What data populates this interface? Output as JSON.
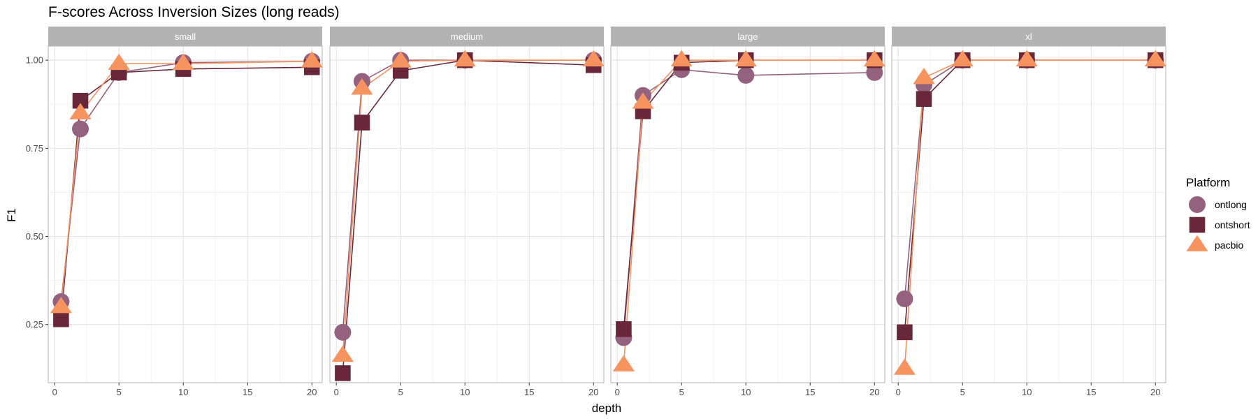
{
  "chart_data": {
    "type": "line",
    "title": "F-scores Across Inversion Sizes (long reads)",
    "xlabel": "depth",
    "ylabel": "F1",
    "xlim": [
      -0.5,
      20.8
    ],
    "ylim": [
      0.085,
      1.04
    ],
    "x_ticks": [
      0,
      5,
      10,
      15,
      20
    ],
    "x_tick_labels": [
      "0",
      "5",
      "10",
      "15",
      "20"
    ],
    "y_ticks": [
      0.25,
      0.5,
      0.75,
      1.0
    ],
    "y_tick_labels": [
      "0.25",
      "0.50",
      "0.75",
      "1.00"
    ],
    "grid": true,
    "legend": {
      "title": "Platform",
      "position": "right"
    },
    "x": [
      0.5,
      2,
      5,
      10,
      20
    ],
    "series_styles": [
      {
        "name": "ontlong",
        "color": "#94627f",
        "marker": "circle"
      },
      {
        "name": "ontshort",
        "color": "#68283a",
        "marker": "square"
      },
      {
        "name": "pacbio",
        "color": "#f7935e",
        "marker": "triangle"
      }
    ],
    "panels": [
      {
        "facet": "small",
        "series": [
          {
            "name": "ontlong",
            "values": [
              0.315,
              0.805,
              0.965,
              0.993,
              0.997
            ]
          },
          {
            "name": "ontshort",
            "values": [
              0.265,
              0.885,
              0.965,
              0.975,
              0.98
            ]
          },
          {
            "name": "pacbio",
            "values": [
              0.3,
              0.85,
              0.99,
              0.99,
              0.997
            ]
          }
        ]
      },
      {
        "facet": "medium",
        "series": [
          {
            "name": "ontlong",
            "values": [
              0.228,
              0.94,
              1.0,
              1.0,
              1.0
            ]
          },
          {
            "name": "ontshort",
            "values": [
              0.112,
              0.823,
              0.97,
              1.0,
              0.986
            ]
          },
          {
            "name": "pacbio",
            "values": [
              0.162,
              0.92,
              0.997,
              1.0,
              1.0
            ]
          }
        ]
      },
      {
        "facet": "large",
        "series": [
          {
            "name": "ontlong",
            "values": [
              0.213,
              0.9,
              0.973,
              0.957,
              0.965
            ]
          },
          {
            "name": "ontshort",
            "values": [
              0.237,
              0.855,
              0.993,
              1.0,
              1.0
            ]
          },
          {
            "name": "pacbio",
            "values": [
              0.135,
              0.88,
              1.0,
              1.0,
              1.0
            ]
          }
        ]
      },
      {
        "facet": "xl",
        "series": [
          {
            "name": "ontlong",
            "values": [
              0.323,
              0.93,
              1.0,
              1.0,
              1.0
            ]
          },
          {
            "name": "ontshort",
            "values": [
              0.228,
              0.89,
              1.0,
              1.0,
              1.0
            ]
          },
          {
            "name": "pacbio",
            "values": [
              0.125,
              0.95,
              1.0,
              1.0,
              1.0
            ]
          }
        ]
      }
    ]
  }
}
